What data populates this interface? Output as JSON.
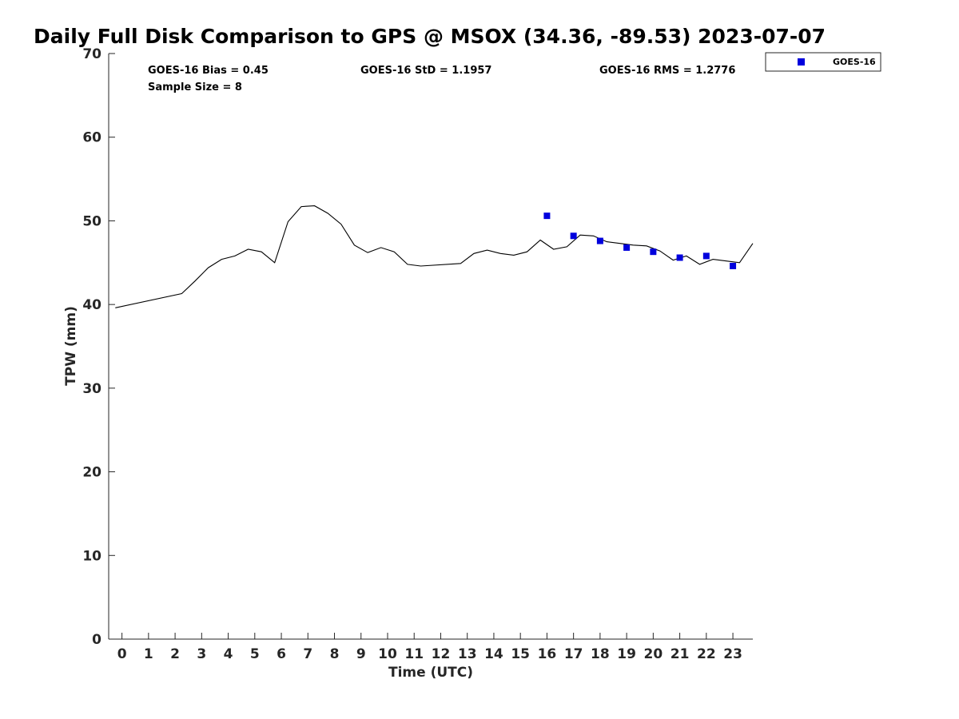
{
  "chart_data": {
    "type": "scatter",
    "title": "Daily Full Disk Comparison to GPS @ MSOX (34.36, -89.53) 2023-07-07",
    "xlabel": "Time (UTC)",
    "ylabel": "TPW (mm)",
    "xlim": [
      -0.5,
      23.75
    ],
    "ylim": [
      0,
      70
    ],
    "x_ticks": [
      "0",
      "1",
      "2",
      "3",
      "4",
      "5",
      "6",
      "7",
      "8",
      "9",
      "10",
      "11",
      "12",
      "13",
      "14",
      "15",
      "16",
      "17",
      "18",
      "19",
      "20",
      "21",
      "22",
      "23"
    ],
    "y_ticks": [
      "0",
      "10",
      "20",
      "30",
      "40",
      "50",
      "60",
      "70"
    ],
    "grid": false,
    "legend": {
      "position": "top-right",
      "entries": [
        "GOES-16"
      ]
    },
    "stats": {
      "bias": "GOES-16 Bias = 0.45",
      "std": "GOES-16 StD = 1.1957",
      "rms": "GOES-16 RMS = 1.2776",
      "sample": "Sample Size = 8"
    },
    "gps_line": {
      "color": "#000000",
      "x": [
        -0.25,
        2.25,
        2.75,
        3.25,
        3.75,
        4.25,
        4.75,
        5.25,
        5.75,
        6.25,
        6.75,
        7.25,
        7.75,
        8.25,
        8.75,
        9.25,
        9.75,
        10.25,
        10.75,
        11.25,
        12.75,
        13.25,
        13.75,
        14.25,
        14.75,
        15.25,
        15.75,
        16.25,
        16.75,
        17.25,
        17.75,
        18.25,
        18.75,
        19.25,
        19.75,
        20.25,
        20.75,
        21.25,
        21.75,
        22.25,
        22.75,
        23.25,
        23.75
      ],
      "y": [
        39.6,
        41.3,
        42.8,
        44.4,
        45.4,
        45.8,
        46.6,
        46.3,
        45.0,
        49.9,
        51.7,
        51.8,
        50.9,
        49.6,
        47.1,
        46.2,
        46.8,
        46.3,
        44.8,
        44.6,
        44.9,
        46.1,
        46.5,
        46.1,
        45.9,
        46.3,
        47.7,
        46.6,
        46.9,
        48.3,
        48.2,
        47.5,
        47.3,
        47.1,
        47.0,
        46.4,
        45.3,
        45.8,
        44.8,
        45.4,
        45.2,
        45.0,
        47.3
      ]
    },
    "series": [
      {
        "name": "GOES-16",
        "color": "#0000dd",
        "marker": "square",
        "x": [
          16,
          17,
          18,
          19,
          20,
          21,
          22,
          23
        ],
        "y": [
          50.6,
          48.2,
          47.6,
          46.8,
          46.3,
          45.6,
          45.8,
          44.6
        ]
      }
    ]
  }
}
